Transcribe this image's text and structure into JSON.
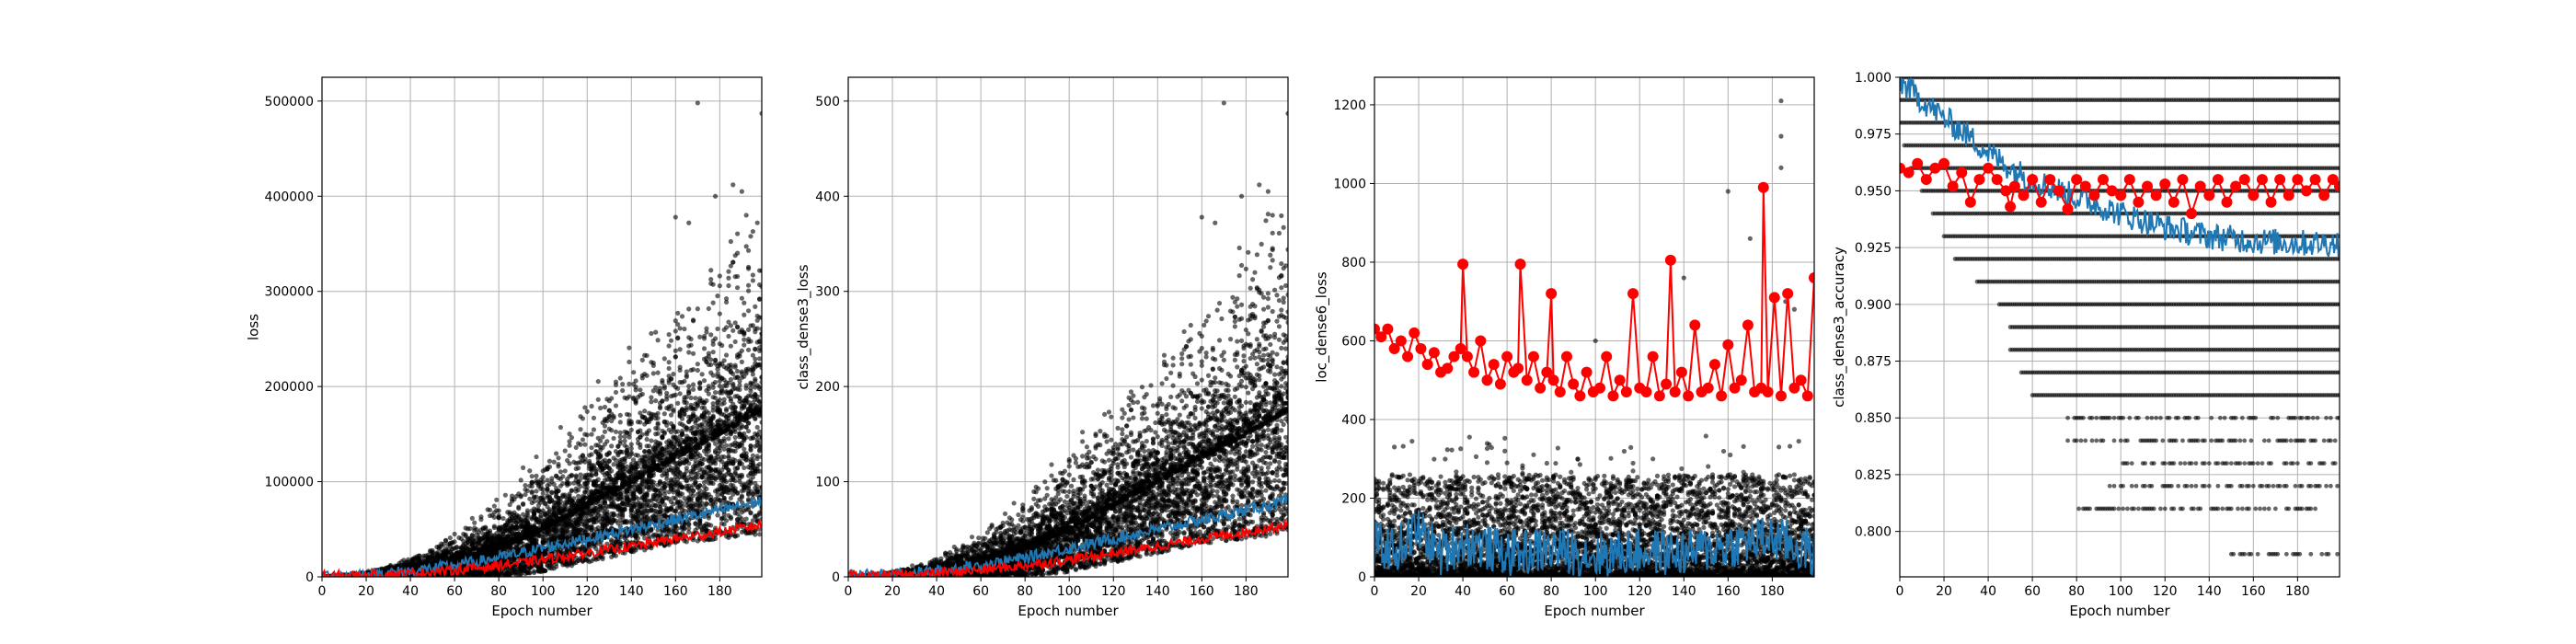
{
  "colors": {
    "scatter": "#000000",
    "train_line": "#1f77b4",
    "val_line": "#ff0000",
    "grid": "#b0b0b0"
  },
  "chart_data": [
    {
      "type": "scatter",
      "xlabel": "Epoch number",
      "ylabel": "loss",
      "xlim": [
        0,
        199
      ],
      "ylim": [
        0,
        525000
      ],
      "xticks": [
        0,
        20,
        40,
        60,
        80,
        100,
        120,
        140,
        160,
        180
      ],
      "xtick_labels": [
        "0",
        "20",
        "40",
        "60",
        "80",
        "100",
        "120",
        "140",
        "160",
        "180"
      ],
      "yticks": [
        0,
        100000,
        200000,
        300000,
        400000,
        500000
      ],
      "ytick_labels": [
        "0",
        "100000",
        "200000",
        "300000",
        "400000",
        "500000"
      ],
      "grid": true,
      "series": [
        {
          "kind": "scatter",
          "pattern": "growth_cloud",
          "x": [
            0,
            20,
            40,
            60,
            80,
            100,
            120,
            140,
            160,
            180,
            199
          ],
          "y_mid": [
            0,
            1500,
            6000,
            15000,
            30000,
            50000,
            75000,
            100000,
            125000,
            150000,
            175000
          ],
          "y_spread": [
            0,
            4000,
            15000,
            35000,
            60000,
            90000,
            120000,
            150000,
            180000,
            220000,
            260000
          ],
          "outliers": [
            [
              170,
              498000
            ],
            [
              199,
              487000
            ],
            [
              160,
              378000
            ],
            [
              166,
              372000
            ],
            [
              186,
              412000
            ],
            [
              190,
              405000
            ],
            [
              192,
              380000
            ],
            [
              178,
              400000
            ]
          ]
        },
        {
          "kind": "line",
          "color_key": "train_line",
          "x": [
            0,
            20,
            40,
            60,
            80,
            100,
            120,
            140,
            160,
            180,
            199
          ],
          "y": [
            1500,
            2500,
            6000,
            12000,
            20000,
            30000,
            40000,
            50000,
            60000,
            70000,
            80000
          ],
          "noise": 6000
        },
        {
          "kind": "line",
          "color_key": "val_line",
          "x": [
            0,
            20,
            40,
            60,
            80,
            100,
            120,
            140,
            160,
            180,
            199
          ],
          "y": [
            1000,
            1500,
            3500,
            7000,
            12000,
            18000,
            25000,
            32000,
            40000,
            47000,
            55000
          ],
          "noise": 5000
        }
      ]
    },
    {
      "type": "scatter",
      "xlabel": "Epoch number",
      "ylabel": "class_dense3_loss",
      "xlim": [
        0,
        199
      ],
      "ylim": [
        0,
        525
      ],
      "xticks": [
        0,
        20,
        40,
        60,
        80,
        100,
        120,
        140,
        160,
        180
      ],
      "xtick_labels": [
        "0",
        "20",
        "40",
        "60",
        "80",
        "100",
        "120",
        "140",
        "160",
        "180"
      ],
      "yticks": [
        0,
        100,
        200,
        300,
        400,
        500
      ],
      "ytick_labels": [
        "0",
        "100",
        "200",
        "300",
        "400",
        "500"
      ],
      "grid": true,
      "series": [
        {
          "kind": "scatter",
          "pattern": "growth_cloud",
          "x": [
            0,
            20,
            40,
            60,
            80,
            100,
            120,
            140,
            160,
            180,
            199
          ],
          "y_mid": [
            0,
            1.5,
            6,
            15,
            30,
            50,
            75,
            100,
            125,
            150,
            175
          ],
          "y_spread": [
            0,
            4,
            15,
            35,
            60,
            90,
            120,
            150,
            180,
            220,
            260
          ],
          "outliers": [
            [
              170,
              498
            ],
            [
              199,
              487
            ],
            [
              160,
              378
            ],
            [
              166,
              372
            ],
            [
              186,
              412
            ],
            [
              190,
              405
            ],
            [
              192,
              380
            ],
            [
              178,
              400
            ]
          ]
        },
        {
          "kind": "line",
          "color_key": "train_line",
          "x": [
            0,
            20,
            40,
            60,
            80,
            100,
            120,
            140,
            160,
            180,
            199
          ],
          "y": [
            1.5,
            2.5,
            6,
            12,
            20,
            30,
            40,
            50,
            60,
            70,
            80
          ],
          "noise": 6
        },
        {
          "kind": "line",
          "color_key": "val_line",
          "x": [
            0,
            20,
            40,
            60,
            80,
            100,
            120,
            140,
            160,
            180,
            199
          ],
          "y": [
            1,
            1.5,
            3.5,
            7,
            12,
            18,
            25,
            32,
            40,
            47,
            55
          ],
          "noise": 5
        }
      ]
    },
    {
      "type": "scatter",
      "xlabel": "Epoch number",
      "ylabel": "loc_dense6_loss",
      "xlim": [
        0,
        199
      ],
      "ylim": [
        0,
        1270
      ],
      "xticks": [
        0,
        20,
        40,
        60,
        80,
        100,
        120,
        140,
        160,
        180
      ],
      "xtick_labels": [
        "0",
        "20",
        "40",
        "60",
        "80",
        "100",
        "120",
        "140",
        "160",
        "180"
      ],
      "yticks": [
        0,
        200,
        400,
        600,
        800,
        1000,
        1200
      ],
      "ytick_labels": [
        "0",
        "200",
        "400",
        "600",
        "800",
        "1000",
        "1200"
      ],
      "grid": true,
      "series": [
        {
          "kind": "scatter",
          "pattern": "band_cloud",
          "x": [
            0,
            199
          ],
          "y_low": [
            0,
            0
          ],
          "y_high": [
            260,
            260
          ],
          "outliers": [
            [
              184,
              1210
            ],
            [
              184,
              1120
            ],
            [
              184,
              1040
            ],
            [
              170,
              860
            ],
            [
              160,
              980
            ],
            [
              140,
              760
            ],
            [
              186,
              700
            ],
            [
              190,
              680
            ],
            [
              100,
              600
            ],
            [
              80,
              520
            ]
          ]
        },
        {
          "kind": "line",
          "color_key": "train_line",
          "x": [
            0,
            10,
            20,
            30,
            40,
            60,
            80,
            100,
            120,
            140,
            160,
            180,
            199
          ],
          "y": [
            80,
            70,
            120,
            60,
            90,
            60,
            70,
            55,
            65,
            60,
            80,
            100,
            60
          ],
          "noise": 60
        },
        {
          "kind": "line_markers",
          "color_key": "val_line",
          "x": [
            0,
            3,
            6,
            9,
            12,
            15,
            18,
            21,
            24,
            27,
            30,
            33,
            36,
            39,
            40,
            42,
            45,
            48,
            51,
            54,
            57,
            60,
            63,
            65,
            66,
            69,
            72,
            75,
            78,
            80,
            81,
            84,
            87,
            90,
            93,
            96,
            99,
            102,
            105,
            108,
            111,
            114,
            117,
            120,
            123,
            126,
            129,
            132,
            134,
            136,
            139,
            142,
            145,
            148,
            151,
            154,
            157,
            160,
            163,
            166,
            169,
            172,
            175,
            176,
            178,
            181,
            184,
            187,
            190,
            193,
            196,
            199
          ],
          "y": [
            630,
            610,
            630,
            580,
            600,
            560,
            620,
            580,
            540,
            570,
            520,
            530,
            560,
            580,
            795,
            560,
            520,
            600,
            500,
            540,
            490,
            560,
            520,
            530,
            795,
            500,
            560,
            480,
            520,
            720,
            500,
            470,
            560,
            490,
            460,
            520,
            470,
            480,
            560,
            460,
            500,
            470,
            720,
            480,
            470,
            560,
            460,
            490,
            805,
            470,
            520,
            460,
            640,
            470,
            480,
            540,
            460,
            590,
            480,
            500,
            640,
            470,
            480,
            990,
            470,
            710,
            460,
            720,
            480,
            500,
            460,
            760
          ]
        }
      ]
    },
    {
      "type": "scatter",
      "xlabel": "Epoch number",
      "ylabel": "class_dense3_accuracy",
      "xlim": [
        0,
        199
      ],
      "ylim": [
        0.78,
        1.0
      ],
      "xticks": [
        0,
        20,
        40,
        60,
        80,
        100,
        120,
        140,
        160,
        180
      ],
      "xtick_labels": [
        "0",
        "20",
        "40",
        "60",
        "80",
        "100",
        "120",
        "140",
        "160",
        "180"
      ],
      "yticks": [
        0.8,
        0.825,
        0.85,
        0.875,
        0.9,
        0.925,
        0.95,
        0.975,
        1.0
      ],
      "ytick_labels": [
        "0.800",
        "0.825",
        "0.850",
        "0.875",
        "0.900",
        "0.925",
        "0.950",
        "0.975",
        "1.000"
      ],
      "grid": true,
      "series": [
        {
          "kind": "scatter",
          "pattern": "discrete_levels",
          "levels": [
            1.0,
            0.99,
            0.98,
            0.97,
            0.96,
            0.95,
            0.94,
            0.93,
            0.92,
            0.91,
            0.9,
            0.89,
            0.88,
            0.87,
            0.86,
            0.85,
            0.84,
            0.83,
            0.82,
            0.81,
            0.79
          ],
          "level_start_epoch": [
            0,
            0,
            0,
            2,
            5,
            10,
            15,
            20,
            25,
            35,
            45,
            50,
            50,
            55,
            60,
            75,
            75,
            100,
            90,
            80,
            150
          ]
        },
        {
          "kind": "line",
          "color_key": "train_line",
          "x": [
            0,
            10,
            20,
            30,
            40,
            50,
            60,
            80,
            100,
            120,
            140,
            160,
            180,
            199
          ],
          "y": [
            0.998,
            0.99,
            0.982,
            0.975,
            0.967,
            0.96,
            0.955,
            0.947,
            0.94,
            0.934,
            0.93,
            0.928,
            0.927,
            0.927
          ],
          "noise": 0.006
        },
        {
          "kind": "line_markers",
          "color_key": "val_line",
          "x": [
            0,
            4,
            8,
            12,
            16,
            20,
            24,
            28,
            32,
            36,
            40,
            44,
            48,
            50,
            52,
            56,
            60,
            64,
            68,
            72,
            76,
            80,
            84,
            88,
            92,
            96,
            100,
            104,
            108,
            112,
            116,
            120,
            124,
            128,
            132,
            136,
            140,
            144,
            148,
            152,
            156,
            160,
            164,
            168,
            172,
            176,
            180,
            184,
            188,
            192,
            196,
            199
          ],
          "y": [
            0.96,
            0.958,
            0.962,
            0.955,
            0.96,
            0.962,
            0.952,
            0.958,
            0.945,
            0.955,
            0.96,
            0.955,
            0.95,
            0.943,
            0.952,
            0.948,
            0.955,
            0.945,
            0.955,
            0.95,
            0.942,
            0.955,
            0.952,
            0.948,
            0.955,
            0.95,
            0.948,
            0.955,
            0.945,
            0.952,
            0.948,
            0.953,
            0.945,
            0.955,
            0.94,
            0.952,
            0.948,
            0.955,
            0.945,
            0.952,
            0.955,
            0.948,
            0.955,
            0.945,
            0.955,
            0.948,
            0.955,
            0.95,
            0.955,
            0.948,
            0.955,
            0.952
          ]
        }
      ]
    }
  ]
}
